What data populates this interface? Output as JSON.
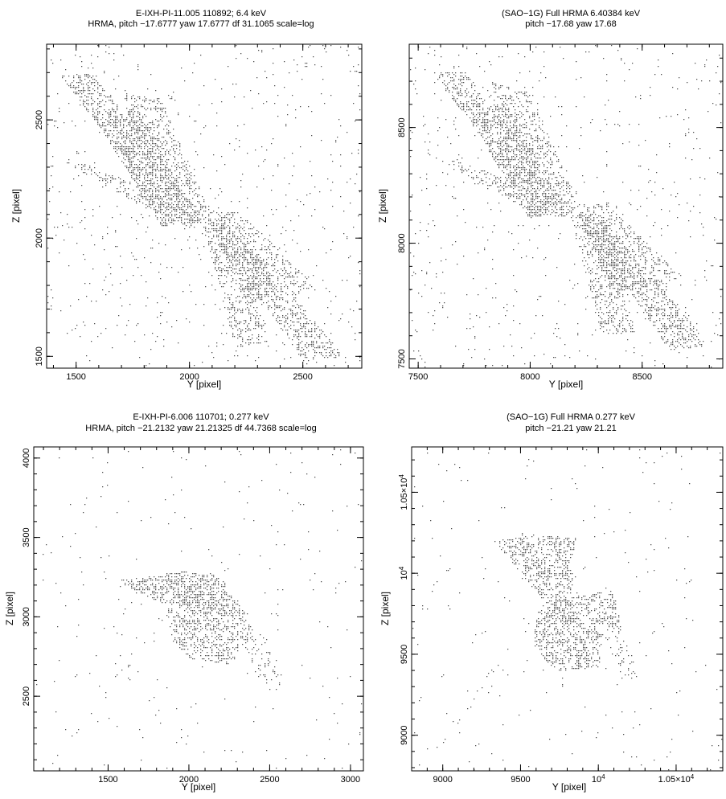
{
  "figure": {
    "panels": [
      {
        "title": [
          "E-IXH-PI-11.005 110892; 6.4 keV",
          "HRMA, pitch −17.6777 yaw 17.6777 df 31.1065 scale=log"
        ],
        "xlabel": "Y [pixel]",
        "ylabel": "Z [pixel]"
      },
      {
        "title": [
          "(SAO−1G) Full HRMA 6.40384 keV",
          "pitch −17.68 yaw 17.68"
        ],
        "xlabel": "Y [pixel]",
        "ylabel": "Z [pixel]"
      },
      {
        "title": [
          "E-IXH-PI-6.006 110701; 0.277 keV",
          "HRMA, pitch −21.2132 yaw 21.21325 df 44.7368 scale=log"
        ],
        "xlabel": "Y [pixel]",
        "ylabel": "Z [pixel]"
      },
      {
        "title": [
          "(SAO−1G) Full HRMA 0.277 keV",
          "pitch −21.21 yaw 21.21"
        ],
        "xlabel": "Y [pixel]",
        "ylabel": "Z [pixel]"
      }
    ]
  },
  "chart_data": [
    {
      "type": "scatter",
      "subtype": "photon-density image",
      "title": "E-IXH-PI-11.005 110892; 6.4 keV",
      "subtitle": "HRMA, pitch −17.6777 yaw 17.6777 df 31.1065 scale=log",
      "xlabel": "Y [pixel]",
      "ylabel": "Z [pixel]",
      "xlim": [
        1370,
        2760
      ],
      "ylim": [
        1450,
        2820
      ],
      "xticks": [
        1500,
        2000,
        2500
      ],
      "xtick_labels": [
        "1500",
        "2000",
        "2500"
      ],
      "yticks": [
        1500,
        2000,
        2500
      ],
      "ytick_labels": [
        "1500",
        "2000",
        "2500"
      ],
      "core": [
        2020,
        2090
      ],
      "regions": [
        {
          "polygon": [
            [
              1430,
              2690
            ],
            [
              1570,
              2700
            ],
            [
              2070,
              2080
            ],
            [
              1930,
              2050
            ]
          ],
          "density": 0.55
        },
        {
          "polygon": [
            [
              1430,
              2330
            ],
            [
              1560,
              2310
            ],
            [
              2060,
              2110
            ],
            [
              1930,
              2060
            ]
          ],
          "density": 0.45
        },
        {
          "polygon": [
            [
              1700,
              2620
            ],
            [
              1870,
              2590
            ],
            [
              2100,
              2100
            ],
            [
              1960,
              2060
            ]
          ],
          "density": 0.45
        },
        {
          "polygon": [
            [
              1600,
              2480
            ],
            [
              1760,
              2560
            ],
            [
              2020,
              2120
            ],
            [
              1880,
              2040
            ]
          ],
          "density": 0.9
        },
        {
          "polygon": [
            [
              2080,
              2120
            ],
            [
              2220,
              2110
            ],
            [
              2560,
              1800
            ],
            [
              2420,
              1740
            ]
          ],
          "density": 0.45
        },
        {
          "polygon": [
            [
              2060,
              2100
            ],
            [
              2200,
              2060
            ],
            [
              2680,
              1500
            ],
            [
              2500,
              1480
            ]
          ],
          "density": 0.55
        },
        {
          "polygon": [
            [
              2050,
              2080
            ],
            [
              2180,
              2060
            ],
            [
              2350,
              1560
            ],
            [
              2200,
              1540
            ]
          ],
          "density": 0.45
        },
        {
          "polygon": [
            [
              2080,
              2080
            ],
            [
              2240,
              2020
            ],
            [
              2400,
              1780
            ],
            [
              2260,
              1720
            ]
          ],
          "density": 0.9
        }
      ],
      "background": 0.03
    },
    {
      "type": "scatter",
      "subtype": "photon-density image",
      "title": "(SAO−1G) Full HRMA 6.40384 keV",
      "subtitle": "pitch −17.68 yaw 17.68",
      "xlabel": "Y [pixel]",
      "ylabel": "Z [pixel]",
      "xlim": [
        7460,
        8860
      ],
      "ylim": [
        7460,
        8860
      ],
      "xticks": [
        7500,
        8000,
        8500
      ],
      "xtick_labels": [
        "7500",
        "8000",
        "8500"
      ],
      "yticks": [
        7500,
        8000,
        8500
      ],
      "ytick_labels": [
        "7500",
        "8000",
        "8500"
      ],
      "core": [
        8140,
        8150
      ],
      "regions": [
        {
          "polygon": [
            [
              7560,
              8740
            ],
            [
              7710,
              8740
            ],
            [
              8190,
              8140
            ],
            [
              8050,
              8120
            ]
          ],
          "density": 0.55
        },
        {
          "polygon": [
            [
              7560,
              8380
            ],
            [
              7700,
              8350
            ],
            [
              8180,
              8170
            ],
            [
              8050,
              8110
            ]
          ],
          "density": 0.45
        },
        {
          "polygon": [
            [
              7820,
              8700
            ],
            [
              7990,
              8670
            ],
            [
              8220,
              8160
            ],
            [
              8080,
              8120
            ]
          ],
          "density": 0.45
        },
        {
          "polygon": [
            [
              7720,
              8550
            ],
            [
              7880,
              8620
            ],
            [
              8140,
              8180
            ],
            [
              8000,
              8100
            ]
          ],
          "density": 0.9
        },
        {
          "polygon": [
            [
              8200,
              8180
            ],
            [
              8340,
              8170
            ],
            [
              8680,
              7860
            ],
            [
              8540,
              7800
            ]
          ],
          "density": 0.45
        },
        {
          "polygon": [
            [
              8180,
              8160
            ],
            [
              8320,
              8120
            ],
            [
              8800,
              7560
            ],
            [
              8620,
              7540
            ]
          ],
          "density": 0.55
        },
        {
          "polygon": [
            [
              8170,
              8140
            ],
            [
              8300,
              8120
            ],
            [
              8470,
              7620
            ],
            [
              8320,
              7600
            ]
          ],
          "density": 0.45
        },
        {
          "polygon": [
            [
              8200,
              8140
            ],
            [
              8360,
              8080
            ],
            [
              8520,
              7840
            ],
            [
              8380,
              7780
            ]
          ],
          "density": 0.9
        }
      ],
      "background": 0.03
    },
    {
      "type": "scatter",
      "subtype": "photon-density image",
      "title": "E-IXH-PI-6.006 110701; 0.277 keV",
      "subtitle": "HRMA, pitch −21.2132 yaw 21.21325 df 44.7368 scale=log",
      "xlabel": "Y [pixel]",
      "ylabel": "Z [pixel]",
      "xlim": [
        1040,
        3080
      ],
      "ylim": [
        2030,
        4070
      ],
      "xticks": [
        1500,
        2000,
        2500,
        3000
      ],
      "xtick_labels": [
        "1500",
        "2000",
        "2500",
        "3000"
      ],
      "yticks": [
        2500,
        3000,
        3500,
        4000
      ],
      "ytick_labels": [
        "2500",
        "3000",
        "3500",
        "4000"
      ],
      "core": [
        2020,
        3120
      ],
      "regions": [
        {
          "polygon": [
            [
              1550,
              3230
            ],
            [
              1950,
              3290
            ],
            [
              2200,
              3260
            ],
            [
              2300,
              3050
            ],
            [
              2180,
              3000
            ],
            [
              1800,
              3100
            ]
          ],
          "density": 0.7
        },
        {
          "polygon": [
            [
              1850,
              3050
            ],
            [
              2300,
              3120
            ],
            [
              2400,
              2900
            ],
            [
              2250,
              2700
            ],
            [
              2000,
              2740
            ],
            [
              1900,
              2850
            ]
          ],
          "density": 0.55
        },
        {
          "polygon": [
            [
              2250,
              2900
            ],
            [
              2450,
              2900
            ],
            [
              2580,
              2580
            ],
            [
              2450,
              2580
            ]
          ],
          "density": 0.25
        },
        {
          "polygon": [
            [
              1110,
              2060
            ],
            [
              1160,
              2060
            ],
            [
              1950,
              3120
            ],
            [
              1900,
              3130
            ]
          ],
          "density": 0.06
        }
      ],
      "background": 0.01
    },
    {
      "type": "scatter",
      "subtype": "photon-density image",
      "title": "(SAO−1G) Full HRMA 0.277 keV",
      "subtitle": "pitch −21.21 yaw 21.21",
      "xlabel": "Y [pixel]",
      "ylabel": "Z [pixel]",
      "xlim": [
        8800,
        10800
      ],
      "ylim": [
        8780,
        10780
      ],
      "xticks": [
        9000,
        9500,
        10000,
        10500
      ],
      "xtick_labels": [
        "9000",
        "9500",
        "10^4",
        "1.05×10^4"
      ],
      "yticks": [
        9000,
        9500,
        10000,
        10500
      ],
      "ytick_labels": [
        "9000",
        "9500",
        "10^4",
        "1.05×10^4"
      ],
      "core": [
        9780,
        9780
      ],
      "regions": [
        {
          "polygon": [
            [
              9330,
              10200
            ],
            [
              9500,
              10230
            ],
            [
              9780,
              9800
            ],
            [
              9700,
              9770
            ]
          ],
          "density": 0.6
        },
        {
          "polygon": [
            [
              9500,
              10250
            ],
            [
              9850,
              10220
            ],
            [
              9820,
              9800
            ],
            [
              9700,
              9820
            ]
          ],
          "density": 0.55
        },
        {
          "polygon": [
            [
              9790,
              9850
            ],
            [
              10100,
              9900
            ],
            [
              10150,
              9650
            ],
            [
              9800,
              9700
            ]
          ],
          "density": 0.6
        },
        {
          "polygon": [
            [
              9600,
              9780
            ],
            [
              10050,
              9800
            ],
            [
              10000,
              9420
            ],
            [
              9720,
              9400
            ],
            [
              9580,
              9550
            ]
          ],
          "density": 0.6
        },
        {
          "polygon": [
            [
              10000,
              9700
            ],
            [
              10150,
              9650
            ],
            [
              10260,
              9360
            ],
            [
              10150,
              9350
            ]
          ],
          "density": 0.25
        },
        {
          "polygon": [
            [
              8840,
              8820
            ],
            [
              8880,
              8800
            ],
            [
              9700,
              9820
            ],
            [
              9660,
              9840
            ]
          ],
          "density": 0.06
        }
      ],
      "background": 0.01
    }
  ]
}
